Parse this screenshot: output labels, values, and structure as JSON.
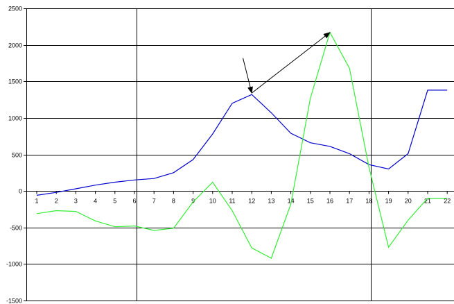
{
  "chart_data": {
    "type": "line",
    "categories": [
      "1",
      "2",
      "3",
      "4",
      "5",
      "6",
      "7",
      "8",
      "9",
      "10",
      "11",
      "12",
      "13",
      "14",
      "15",
      "16",
      "17",
      "18",
      "19",
      "20",
      "21",
      "22"
    ],
    "ylim": [
      -1500,
      2500
    ],
    "yticks": [
      -1500,
      -1000,
      -500,
      0,
      500,
      1000,
      1500,
      2000,
      2500
    ],
    "ytick_labels": [
      "-1500",
      "-1000",
      "-500",
      "0",
      "500",
      "1000",
      "1500",
      "2000",
      "2500"
    ],
    "grid": true,
    "vertical_markers_at": [
      6.1,
      18.1
    ],
    "series": [
      {
        "color": "#0000cc",
        "values": [
          -60,
          -20,
          30,
          80,
          120,
          150,
          170,
          250,
          430,
          780,
          1200,
          1320,
          1070,
          790,
          660,
          610,
          510,
          360,
          300,
          510,
          1380,
          1380
        ]
      },
      {
        "color": "#33ee33",
        "values": [
          -310,
          -270,
          -280,
          -410,
          -490,
          -480,
          -540,
          -510,
          -150,
          120,
          -270,
          -780,
          -920,
          -180,
          1270,
          2170,
          1680,
          320,
          -770,
          -400,
          -100,
          -100
        ]
      }
    ],
    "annotations": [
      {
        "type": "arrow",
        "from": [
          11.55,
          1820
        ],
        "to": [
          12.0,
          1340
        ]
      },
      {
        "type": "arrow",
        "from": [
          12.0,
          1340
        ],
        "to": [
          16.0,
          2170
        ]
      }
    ]
  }
}
